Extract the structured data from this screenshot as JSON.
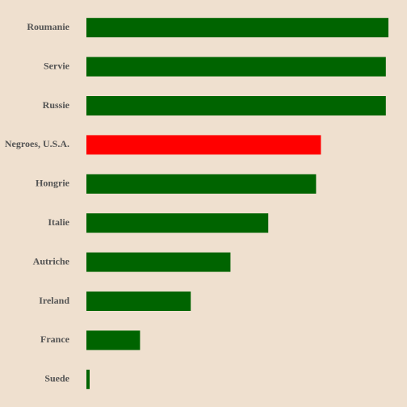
{
  "chart_data": {
    "type": "bar",
    "orientation": "horizontal",
    "title": "",
    "xlabel": "",
    "ylabel": "",
    "categories": [
      "Roumanie",
      "Servie",
      "Russie",
      "Negroes, U.S.A.",
      "Hongrie",
      "Italie",
      "Autriche",
      "Ireland",
      "France",
      "Suede"
    ],
    "values": [
      93.5,
      92.7,
      92.7,
      72.6,
      71.1,
      56.3,
      44.6,
      32.3,
      16.6,
      1.0
    ],
    "xlim": [
      0,
      100
    ],
    "grid": false,
    "legend": "none",
    "colors": {
      "background": "#efe0cf",
      "default_bar": "#006400",
      "highlight_bar": "#ff0000",
      "label": "#555555"
    },
    "highlight": "Negroes, U.S.A."
  }
}
